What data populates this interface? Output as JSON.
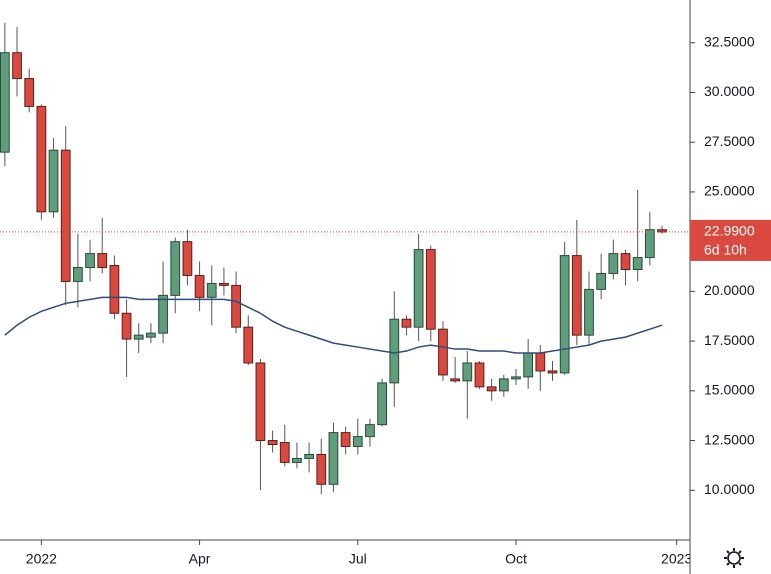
{
  "chart_data": {
    "type": "candlestick",
    "open": [
      27.0,
      32.0,
      30.7,
      29.3,
      24.0,
      27.1,
      20.5,
      21.2,
      21.9,
      21.3,
      18.9,
      17.6,
      17.7,
      17.9,
      19.8,
      22.5,
      20.8,
      19.7,
      20.4,
      20.3,
      18.2,
      16.4,
      12.5,
      12.4,
      11.4,
      11.6,
      11.8,
      10.3,
      12.9,
      12.2,
      12.7,
      13.3,
      15.4,
      18.6,
      18.2,
      22.1,
      18.1,
      15.6,
      15.5,
      16.4,
      15.2,
      15.0,
      15.6,
      15.7,
      16.9,
      16.0,
      15.9,
      21.8,
      17.8,
      20.1,
      20.9,
      21.9,
      21.1,
      21.7,
      23.1
    ],
    "high": [
      33.5,
      33.3,
      31.2,
      29.4,
      27.7,
      28.3,
      22.9,
      22.6,
      23.7,
      21.8,
      19.6,
      18.4,
      18.4,
      21.5,
      22.7,
      23.1,
      21.5,
      21.3,
      21.2,
      21.0,
      18.8,
      16.6,
      13.0,
      13.3,
      12.4,
      12.4,
      12.6,
      13.4,
      13.2,
      13.6,
      13.6,
      15.6,
      20.0,
      18.8,
      22.9,
      22.3,
      18.5,
      16.7,
      17.0,
      16.5,
      15.6,
      15.8,
      16.1,
      17.6,
      17.3,
      16.5,
      22.5,
      23.6,
      21.0,
      21.9,
      22.6,
      22.1,
      25.1,
      24.0,
      23.3
    ],
    "low": [
      26.3,
      29.8,
      29.0,
      23.6,
      23.7,
      19.3,
      19.2,
      20.5,
      20.9,
      18.6,
      15.7,
      16.9,
      17.4,
      17.4,
      18.9,
      20.3,
      19.0,
      18.3,
      19.8,
      17.9,
      16.3,
      10.0,
      11.9,
      11.2,
      11.1,
      10.9,
      9.8,
      9.9,
      11.8,
      11.8,
      12.2,
      13.2,
      14.2,
      17.8,
      17.5,
      17.5,
      15.5,
      15.4,
      13.6,
      15.1,
      14.5,
      14.7,
      15.3,
      15.1,
      15.0,
      15.5,
      15.8,
      17.3,
      17.3,
      19.6,
      20.6,
      20.3,
      20.5,
      21.3,
      22.9
    ],
    "close": [
      32.0,
      30.7,
      29.3,
      24.0,
      27.1,
      20.5,
      21.2,
      21.9,
      21.2,
      18.9,
      17.6,
      17.8,
      17.9,
      19.8,
      22.5,
      20.8,
      19.7,
      20.4,
      20.3,
      18.2,
      16.4,
      12.5,
      12.3,
      11.4,
      11.6,
      11.8,
      10.3,
      12.9,
      12.2,
      12.7,
      13.3,
      15.4,
      18.6,
      18.2,
      22.1,
      18.1,
      15.8,
      15.5,
      16.4,
      15.2,
      15.0,
      15.6,
      15.7,
      16.9,
      16.0,
      15.9,
      21.8,
      17.8,
      20.1,
      20.9,
      21.9,
      21.1,
      21.7,
      23.1,
      22.99
    ],
    "moving_average": {
      "color": "#2e4d7b",
      "values": [
        17.8,
        18.3,
        18.7,
        19.0,
        19.2,
        19.4,
        19.5,
        19.6,
        19.7,
        19.7,
        19.7,
        19.6,
        19.6,
        19.6,
        19.6,
        19.6,
        19.6,
        19.6,
        19.6,
        19.5,
        19.2,
        18.9,
        18.5,
        18.2,
        18.0,
        17.8,
        17.6,
        17.4,
        17.3,
        17.2,
        17.1,
        17.0,
        16.9,
        17.0,
        17.2,
        17.3,
        17.2,
        17.1,
        17.1,
        17.0,
        17.0,
        17.0,
        16.9,
        16.9,
        16.9,
        17.0,
        17.1,
        17.2,
        17.3,
        17.5,
        17.6,
        17.7,
        17.9,
        18.1,
        18.3
      ]
    },
    "up_color": "#5f9e7a",
    "down_color": "#d9493f",
    "xlim": [
      -0.4,
      56.3
    ],
    "xticks": [
      {
        "value": 3,
        "label": "2022"
      },
      {
        "value": 16,
        "label": "Apr"
      },
      {
        "value": 29,
        "label": "Jul"
      },
      {
        "value": 42,
        "label": "Oct"
      },
      {
        "value": 55.2,
        "label": "2023"
      }
    ],
    "ylim": [
      7.5,
      34.65
    ],
    "yticks": [
      {
        "value": 10,
        "label": "10.0000"
      },
      {
        "value": 12.5,
        "label": "12.5000"
      },
      {
        "value": 15,
        "label": "15.0000"
      },
      {
        "value": 17.5,
        "label": "17.5000"
      },
      {
        "value": 20,
        "label": "20.0000"
      },
      {
        "value": 22.5,
        "label": "22.5000"
      },
      {
        "value": 25,
        "label": "25.0000"
      },
      {
        "value": 27.5,
        "label": "27.5000"
      },
      {
        "value": 30,
        "label": "30.0000"
      },
      {
        "value": 32.5,
        "label": "32.5000"
      }
    ],
    "last_price": {
      "value": 22.99,
      "label": "22.9900",
      "countdown": "6d 10h"
    }
  }
}
